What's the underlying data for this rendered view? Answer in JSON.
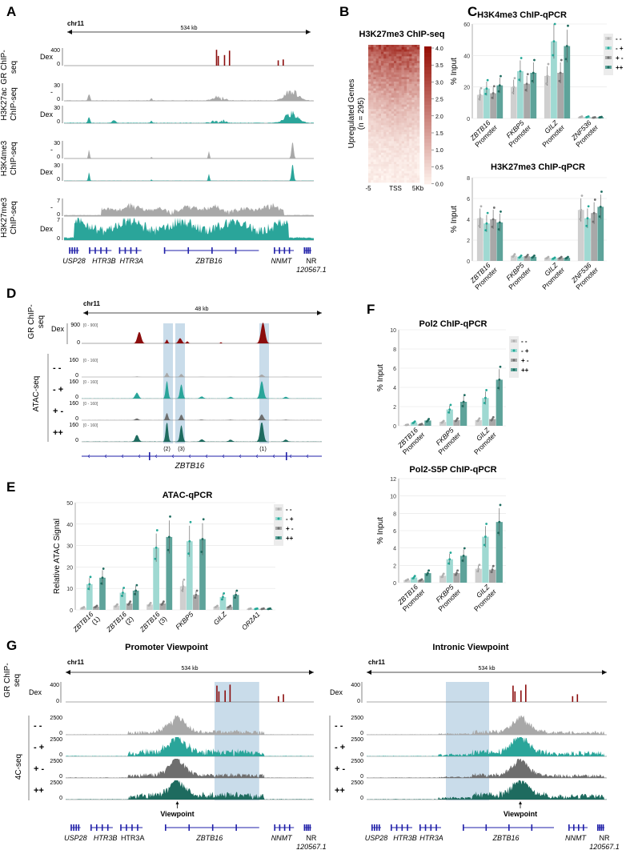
{
  "colors": {
    "red": "#8b0d0d",
    "grey": "#a8a8a8",
    "teal": "#2aa59a",
    "darkgrey": "#6e6e6e",
    "darkteal": "#1e6b5f",
    "hl": "#c9dcea",
    "gene": "#1f1fa8"
  },
  "panelA": {
    "letter": "A",
    "chrom": "chr11",
    "scale": "534 kb",
    "tracks": [
      {
        "group": "GR ChIP-seq",
        "sub": "Dex",
        "ymax": "400",
        "color": "red",
        "profile": "gr"
      },
      {
        "group": "H3K27ac ChIP-seq",
        "sub": "-",
        "ymax": "30",
        "color": "grey",
        "profile": "k27ac"
      },
      {
        "group": "",
        "sub": "Dex",
        "ymax": "30",
        "color": "teal",
        "profile": "k27ac"
      },
      {
        "group": "H3K4me3 ChIP-seq",
        "sub": "-",
        "ymax": "30",
        "color": "grey",
        "profile": "k4me3"
      },
      {
        "group": "",
        "sub": "Dex",
        "ymax": "30",
        "color": "teal",
        "profile": "k4me3"
      },
      {
        "group": "H3K27me3 ChIP-seq",
        "sub": "-",
        "ymax": "7",
        "color": "grey",
        "profile": "k27me3"
      },
      {
        "group": "",
        "sub": "Dex",
        "ymax": "7",
        "color": "teal",
        "profile": "k27me3"
      }
    ],
    "groupLabels": [
      "GR ChIP-",
      "seq",
      "H3K27ac",
      "ChIP-seq",
      "H3K4me3",
      "ChIP-seq",
      "H3K27me3",
      "ChIP-seq"
    ],
    "genes": [
      "USP28",
      "HTR3B",
      "HTR3A",
      "ZBTB16",
      "NNMT",
      "NR",
      "120567.1"
    ]
  },
  "panelB": {
    "letter": "B",
    "title": "H3K27me3 ChIP-seq",
    "ylabel": "Upregulated Genes",
    "nlabel": "(n = 295)",
    "xticks": [
      "-5",
      "TSS",
      "5Kb"
    ],
    "scale": [
      "4.0",
      "3.5",
      "3.0",
      "2.5",
      "2.0",
      "1.5",
      "1.0",
      "0.5",
      "0.0"
    ]
  },
  "legend": {
    "keys": [
      "- -",
      "- +",
      "+ -",
      "++"
    ]
  },
  "chart_data": [
    {
      "id": "C1",
      "type": "bar",
      "title": "H3K4me3 ChIP-qPCR",
      "ylabel": "% Input",
      "ylim": [
        0,
        60
      ],
      "yticks": [
        0,
        20,
        40,
        60
      ],
      "categories": [
        "ZBTB16 Promoter",
        "FKBP5 Promoter",
        "GILZ Promoter",
        "ZNF536 Promoter"
      ],
      "series": [
        {
          "name": "- -",
          "values": [
            15,
            20,
            27,
            1
          ]
        },
        {
          "name": "- +",
          "values": [
            19,
            30,
            49,
            1
          ]
        },
        {
          "name": "+ -",
          "values": [
            16,
            22,
            29,
            0.6
          ]
        },
        {
          "name": "++",
          "values": [
            21,
            29,
            46,
            0.8
          ]
        }
      ]
    },
    {
      "id": "C2",
      "type": "bar",
      "title": "H3K27me3 ChIP-qPCR",
      "ylabel": "% Input",
      "ylim": [
        0,
        8
      ],
      "yticks": [
        0,
        2,
        4,
        6,
        8
      ],
      "categories": [
        "ZBTB16 Promoter",
        "FKBP5 Promoter",
        "GILZ Promoter",
        "ZNF536 Promoter"
      ],
      "series": [
        {
          "name": "- -",
          "values": [
            4.1,
            0.5,
            0.3,
            4.9
          ]
        },
        {
          "name": "- +",
          "values": [
            3.6,
            0.4,
            0.25,
            4.1
          ]
        },
        {
          "name": "+ -",
          "values": [
            4.0,
            0.45,
            0.3,
            4.6
          ]
        },
        {
          "name": "++",
          "values": [
            3.7,
            0.4,
            0.3,
            5.2
          ]
        }
      ]
    },
    {
      "id": "E",
      "type": "bar",
      "title": "ATAC-qPCR",
      "ylabel": "Relative ATAC Signal",
      "ylim": [
        0,
        50
      ],
      "yticks": [
        0,
        10,
        20,
        30,
        40,
        50
      ],
      "categories": [
        "ZBTB16 (1)",
        "ZBTB16 (2)",
        "ZBTB16 (3)",
        "FKBP5",
        "GILZ",
        "OR2A1"
      ],
      "series": [
        {
          "name": "- -",
          "values": [
            1,
            2,
            2.5,
            11,
            1.5,
            0.5
          ]
        },
        {
          "name": "- +",
          "values": [
            12,
            8,
            29,
            32,
            6,
            0.5
          ]
        },
        {
          "name": "+ -",
          "values": [
            1.5,
            3,
            3,
            7,
            1.5,
            0.5
          ]
        },
        {
          "name": "++",
          "values": [
            15,
            9,
            34,
            33,
            7,
            0.5
          ]
        }
      ]
    },
    {
      "id": "F1",
      "type": "bar",
      "title": "Pol2 ChIP-qPCR",
      "ylabel": "% Input",
      "ylim": [
        0,
        10
      ],
      "yticks": [
        0,
        2,
        4,
        6,
        8,
        10
      ],
      "categories": [
        "ZBTB16 Promoter",
        "FKBP5 Promoter",
        "GILZ Promoter"
      ],
      "series": [
        {
          "name": "- -",
          "values": [
            0.1,
            0.4,
            0.6
          ]
        },
        {
          "name": "- +",
          "values": [
            0.35,
            1.7,
            2.9
          ]
        },
        {
          "name": "+ -",
          "values": [
            0.15,
            0.6,
            0.7
          ]
        },
        {
          "name": "++",
          "values": [
            0.55,
            2.5,
            4.8
          ]
        }
      ]
    },
    {
      "id": "F2",
      "type": "bar",
      "title": "Pol2-S5P ChIP-qPCR",
      "ylabel": "% Input",
      "ylim": [
        0,
        12
      ],
      "yticks": [
        0,
        2,
        4,
        6,
        8,
        10,
        12
      ],
      "categories": [
        "ZBTB16 Promoter",
        "FKBP5 Promoter",
        "GILZ Promoter"
      ],
      "series": [
        {
          "name": "- -",
          "values": [
            0.3,
            0.8,
            1.6
          ]
        },
        {
          "name": "- +",
          "values": [
            0.6,
            2.7,
            5.3
          ]
        },
        {
          "name": "+ -",
          "values": [
            0.3,
            1.1,
            1.5
          ]
        },
        {
          "name": "++",
          "values": [
            1.1,
            3.1,
            7.0
          ]
        }
      ]
    }
  ],
  "panelD": {
    "letter": "D",
    "chrom": "chr11",
    "scale": "48 kb",
    "grGroup": [
      "GR ChIP-",
      "seq"
    ],
    "grSub": "Dex",
    "grMax": "900",
    "grRange": "[0 - 900]",
    "atacGroup": "ATAC-seq",
    "atacMax": "160",
    "atacRange": "[0 - 160]",
    "conds": [
      "- -",
      "- +",
      "+ -",
      "++"
    ],
    "peaks": [
      "(2)",
      "(3)",
      "(1)"
    ],
    "gene": "ZBTB16"
  },
  "panelF": {
    "letter": "F"
  },
  "panelE": {
    "letter": "E"
  },
  "panelC": {
    "letter": "C"
  },
  "panelG": {
    "letter": "G",
    "titles": [
      "Promoter Viewpoint",
      "Intronic Viewpoint"
    ],
    "chrom": "chr11",
    "scale": "534 kb",
    "grGroup": [
      "GR ChIP-",
      "seq"
    ],
    "grSub": "Dex",
    "grMax": "400",
    "fcGroup": "4C-seq",
    "fcMax": "2500",
    "conds": [
      "- -",
      "- +",
      "+ -",
      "++"
    ],
    "viewpoint": "Viewpoint",
    "genes": [
      "USP28",
      "HTR3B",
      "HTR3A",
      "ZBTB16",
      "NNMT",
      "NR",
      "120567.1"
    ]
  }
}
